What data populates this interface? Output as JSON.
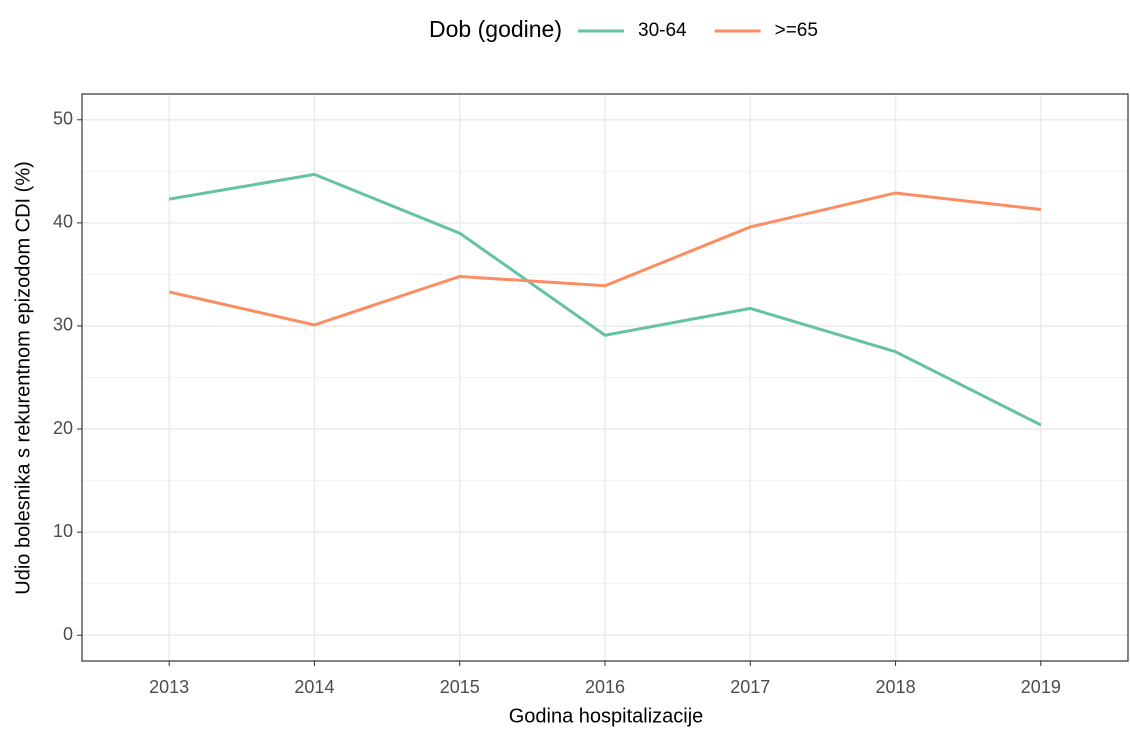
{
  "chart_data": {
    "type": "line",
    "x_label": "Godina hospitalizacije",
    "y_label": "Udio bolesnika s rekurentnom epizodom CDI (%)",
    "legend_title": "Dob (godine)",
    "legend_position": "top",
    "x": [
      2013,
      2014,
      2015,
      2016,
      2017,
      2018,
      2019
    ],
    "series": [
      {
        "name": "30-64",
        "color": "#66c2a5",
        "values": [
          42.3,
          44.7,
          39.0,
          29.1,
          31.7,
          27.5,
          20.4
        ]
      },
      {
        "name": ">=65",
        "color": "#fc8d62",
        "values": [
          33.3,
          30.1,
          34.8,
          33.9,
          39.6,
          42.9,
          41.3
        ]
      }
    ],
    "xlim": [
      2012.4,
      2019.6
    ],
    "xticks": [
      2013,
      2014,
      2015,
      2016,
      2017,
      2018,
      2019
    ],
    "ylim": [
      -2.5,
      52.5
    ],
    "yticks": [
      0,
      10,
      20,
      30,
      40,
      50
    ],
    "grid": true
  }
}
